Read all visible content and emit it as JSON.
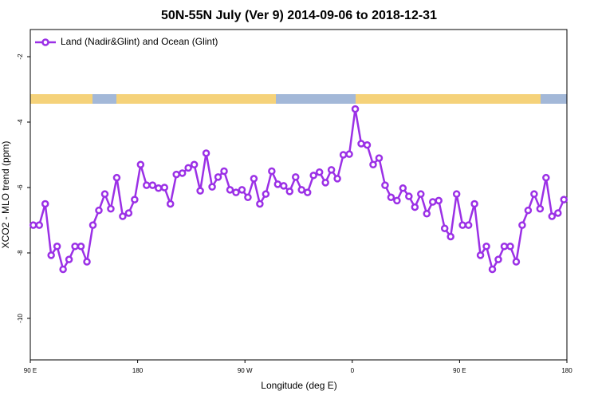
{
  "chart_data": {
    "type": "line",
    "title": "50N-55N July (Ver 9)   2014-09-06 to 2018-12-31",
    "x_label": "Longitude (deg E)",
    "y_label": "XCO2 - MLO trend (ppm)",
    "legend_position": "top-left",
    "x": [
      92.5,
      97.5,
      102.5,
      107.5,
      112.5,
      117.5,
      122.5,
      127.5,
      132.5,
      137.5,
      142.5,
      147.5,
      152.5,
      157.5,
      162.5,
      167.5,
      172.5,
      177.5,
      182.5,
      187.5,
      192.5,
      197.5,
      202.5,
      207.5,
      212.5,
      217.5,
      222.5,
      227.5,
      232.5,
      237.5,
      242.5,
      247.5,
      252.5,
      257.5,
      262.5,
      267.5,
      272.5,
      277.5,
      282.5,
      287.5,
      292.5,
      297.5,
      302.5,
      307.5,
      312.5,
      317.5,
      322.5,
      327.5,
      332.5,
      337.5,
      342.5,
      347.5,
      352.5,
      357.5,
      362.5,
      367.5,
      372.5,
      377.5,
      382.5,
      387.5,
      392.5,
      397.5,
      402.5,
      407.5,
      412.5,
      417.5,
      422.5,
      427.5,
      432.5,
      437.5,
      442.5,
      447.5,
      452.5,
      457.5,
      462.5,
      467.5,
      472.5,
      477.5,
      482.5,
      487.5,
      492.5,
      497.5,
      502.5,
      507.5,
      512.5,
      517.5,
      522.5,
      527.5,
      532.5,
      537.5
    ],
    "series": [
      {
        "name": "Land (Nadir&Glint) and Ocean (Glint)",
        "color": "#9b30e6",
        "values": [
          -7.15,
          -7.15,
          -6.5,
          -8.07,
          -7.8,
          -8.5,
          -8.2,
          -7.8,
          -7.8,
          -8.27,
          -7.15,
          -6.7,
          -6.2,
          -6.65,
          -5.7,
          -6.88,
          -6.78,
          -6.37,
          -5.3,
          -5.93,
          -5.93,
          -6.02,
          -6.0,
          -6.5,
          -5.6,
          -5.56,
          -5.4,
          -5.3,
          -6.1,
          -4.95,
          -5.98,
          -5.68,
          -5.5,
          -6.07,
          -6.15,
          -6.07,
          -6.3,
          -5.73,
          -6.5,
          -6.2,
          -5.5,
          -5.9,
          -5.95,
          -6.12,
          -5.68,
          -6.07,
          -6.15,
          -5.63,
          -5.53,
          -5.85,
          -5.46,
          -5.73,
          -5.0,
          -4.98,
          -3.6,
          -4.66,
          -4.7,
          -5.3,
          -5.1,
          -5.93,
          -6.3,
          -6.4,
          -6.02,
          -6.27,
          -6.6,
          -6.2,
          -6.8,
          -6.44,
          -6.4,
          -7.25,
          -7.5,
          -6.2,
          -7.15,
          -7.15,
          -6.5,
          -8.07,
          -7.8,
          -8.5,
          -8.2,
          -7.8,
          -7.8,
          -8.27,
          -7.15,
          -6.7,
          -6.2,
          -6.65,
          -5.7,
          -6.88,
          -6.78,
          -6.37
        ]
      }
    ],
    "xlim": [
      90,
      540
    ],
    "xticks": [
      {
        "value": 90,
        "label": "90 E"
      },
      180,
      {
        "value": 270,
        "label": "90 W"
      },
      {
        "value": 360,
        "label": "0"
      },
      {
        "value": 450,
        "label": "90 E"
      },
      {
        "value": 540,
        "label": "180"
      }
    ],
    "ylim": [
      -11.27,
      -1.17
    ],
    "yticks": [
      -2,
      -4,
      -6,
      -8,
      -10
    ]
  }
}
